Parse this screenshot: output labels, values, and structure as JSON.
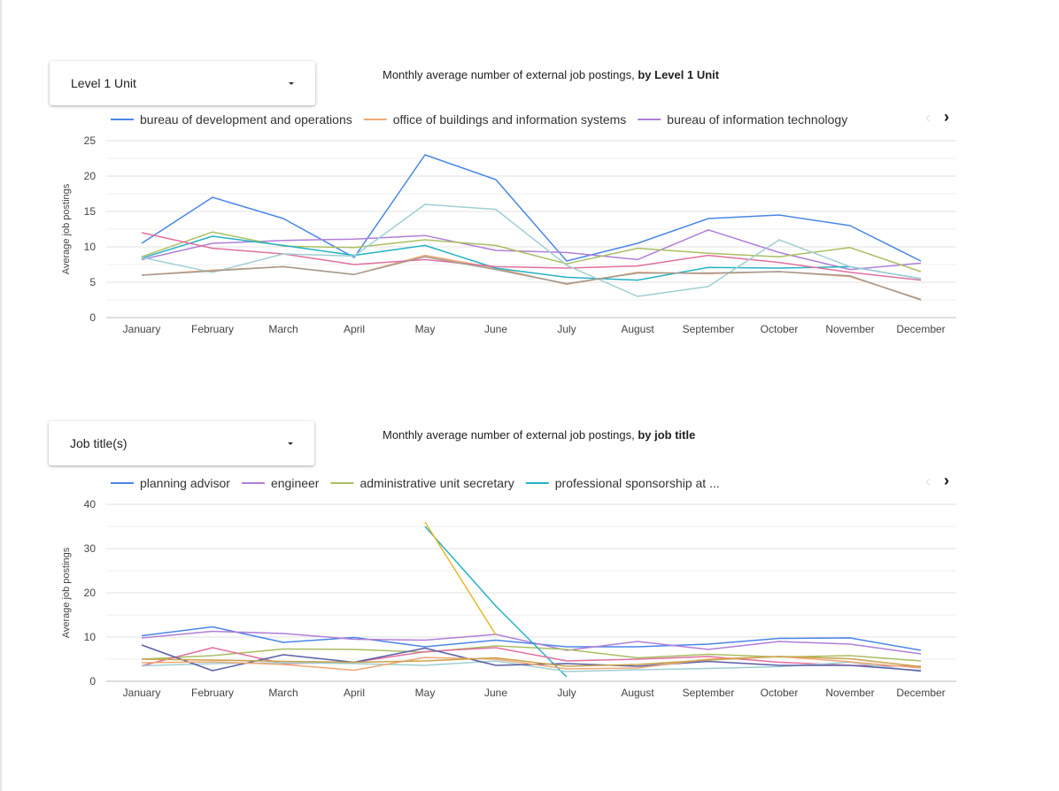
{
  "sections": [
    {
      "dropdown": {
        "label": "Level 1 Unit"
      },
      "title": {
        "prefix": "Monthly average number of external job postings, ",
        "bold": "by Level 1 Unit"
      }
    },
    {
      "dropdown": {
        "label": "Job title(s)"
      },
      "title": {
        "prefix": "Monthly average number of external job postings, ",
        "bold": "by job title"
      }
    }
  ],
  "chart_data": [
    {
      "type": "line",
      "title": "Monthly average number of external job postings, by Level 1 Unit",
      "xlabel": "",
      "ylabel": "Average job postings",
      "ylim": [
        0,
        25
      ],
      "yticks": [
        0,
        5,
        10,
        15,
        20,
        25
      ],
      "grid": true,
      "legend_position": "top",
      "categories": [
        "January",
        "February",
        "March",
        "April",
        "May",
        "June",
        "July",
        "August",
        "September",
        "October",
        "November",
        "December"
      ],
      "series": [
        {
          "name": "bureau of development and operations",
          "color": "#4a86e8",
          "values": [
            10.5,
            17,
            14,
            8.5,
            23,
            19.5,
            8,
            10.5,
            14,
            14.5,
            13,
            8
          ]
        },
        {
          "name": "office of buildings and information systems",
          "color": "#f0a875",
          "values": [
            6,
            6.7,
            7.2,
            6.1,
            8.8,
            7,
            4.7,
            6.4,
            6.2,
            6.5,
            5.8,
            2.6
          ]
        },
        {
          "name": "bureau of information technology",
          "color": "#b07fd8",
          "values": [
            8.2,
            10.5,
            10.9,
            11.1,
            11.6,
            9.5,
            9.2,
            8.2,
            12.4,
            9.2,
            6.8,
            7.7
          ]
        },
        {
          "name": "",
          "color": "#a9bf62",
          "values": [
            8.6,
            12.1,
            10.1,
            9.9,
            11,
            10.2,
            7.6,
            9.8,
            9.1,
            8.6,
            9.9,
            6.5
          ]
        },
        {
          "name": "",
          "color": "#24b2c4",
          "values": [
            8.4,
            11.5,
            10.2,
            8.8,
            10.2,
            7,
            5.7,
            5.3,
            7.1,
            7,
            7.2,
            5.5
          ]
        },
        {
          "name": "",
          "color": "#e1709e",
          "values": [
            12,
            9.8,
            9,
            7.5,
            8.2,
            7.2,
            7,
            7.3,
            8.8,
            7.8,
            6.4,
            5.3
          ]
        },
        {
          "name": "",
          "color": "#9fcfd3",
          "values": [
            8.5,
            6.4,
            9,
            8.7,
            16,
            15.3,
            7.4,
            3,
            4.4,
            11,
            7.2,
            5.5
          ]
        },
        {
          "name": "",
          "color": "#a39a8e",
          "values": [
            6,
            6.6,
            7.2,
            6.1,
            8.6,
            6.8,
            4.8,
            6.3,
            6.3,
            6.5,
            5.9,
            2.5
          ]
        }
      ]
    },
    {
      "type": "line",
      "title": "Monthly average number of external job postings, by job title",
      "xlabel": "",
      "ylabel": "Average job postings",
      "ylim": [
        0,
        40
      ],
      "yticks": [
        0,
        10,
        20,
        30,
        40
      ],
      "grid": true,
      "legend_position": "top",
      "categories": [
        "January",
        "February",
        "March",
        "April",
        "May",
        "June",
        "July",
        "August",
        "September",
        "October",
        "November",
        "December"
      ],
      "series": [
        {
          "name": "planning advisor",
          "color": "#4a86e8",
          "values": [
            10.3,
            12.3,
            8.8,
            9.9,
            7.8,
            9.3,
            7.8,
            7.8,
            8.4,
            9.7,
            9.8,
            7
          ]
        },
        {
          "name": "engineer",
          "color": "#b07fd8",
          "values": [
            9.8,
            11.3,
            10.8,
            9.5,
            9.3,
            10.6,
            7,
            9,
            7.2,
            9,
            8.4,
            6.2
          ]
        },
        {
          "name": "administrative unit secretary",
          "color": "#a9bf62",
          "values": [
            5,
            5.8,
            7.3,
            7.2,
            6.6,
            8,
            7.2,
            5.3,
            6.1,
            5.5,
            5.8,
            4.6
          ]
        },
        {
          "name": "professional sponsorship at ...",
          "color": "#24b2c4",
          "values": [
            null,
            null,
            null,
            null,
            35,
            17,
            1,
            null,
            null,
            null,
            null,
            null
          ]
        },
        {
          "name": "",
          "color": "#e6b82a",
          "values": [
            null,
            null,
            null,
            null,
            36,
            10.5,
            null,
            null,
            null,
            null,
            null,
            null
          ]
        },
        {
          "name": "",
          "color": "#e1709e",
          "values": [
            3.5,
            7.6,
            4,
            4.3,
            6.7,
            7.6,
            4.6,
            5,
            5.6,
            4.3,
            3.6,
            3.4
          ]
        },
        {
          "name": "",
          "color": "#9fcfd3",
          "values": [
            3.5,
            4,
            4.2,
            4,
            3.6,
            4.6,
            2.2,
            2.6,
            2.9,
            3.3,
            4.3,
            2.2
          ]
        },
        {
          "name": "",
          "color": "#5b5fa8",
          "values": [
            8.2,
            2.4,
            6,
            4.3,
            7.5,
            3.6,
            4,
            3.4,
            4.5,
            3.6,
            3.6,
            2.4
          ]
        },
        {
          "name": "",
          "color": "#f0a875",
          "values": [
            4.2,
            4.4,
            3.8,
            2.5,
            5.4,
            5,
            2.8,
            3,
            5,
            5.6,
            4.4,
            3
          ]
        },
        {
          "name": "",
          "color": "#c9a34a",
          "values": [
            5,
            4.8,
            4.5,
            4.3,
            4.6,
            5.3,
            3.4,
            3.8,
            4.8,
            5.6,
            5.1,
            3.3
          ]
        }
      ]
    }
  ]
}
